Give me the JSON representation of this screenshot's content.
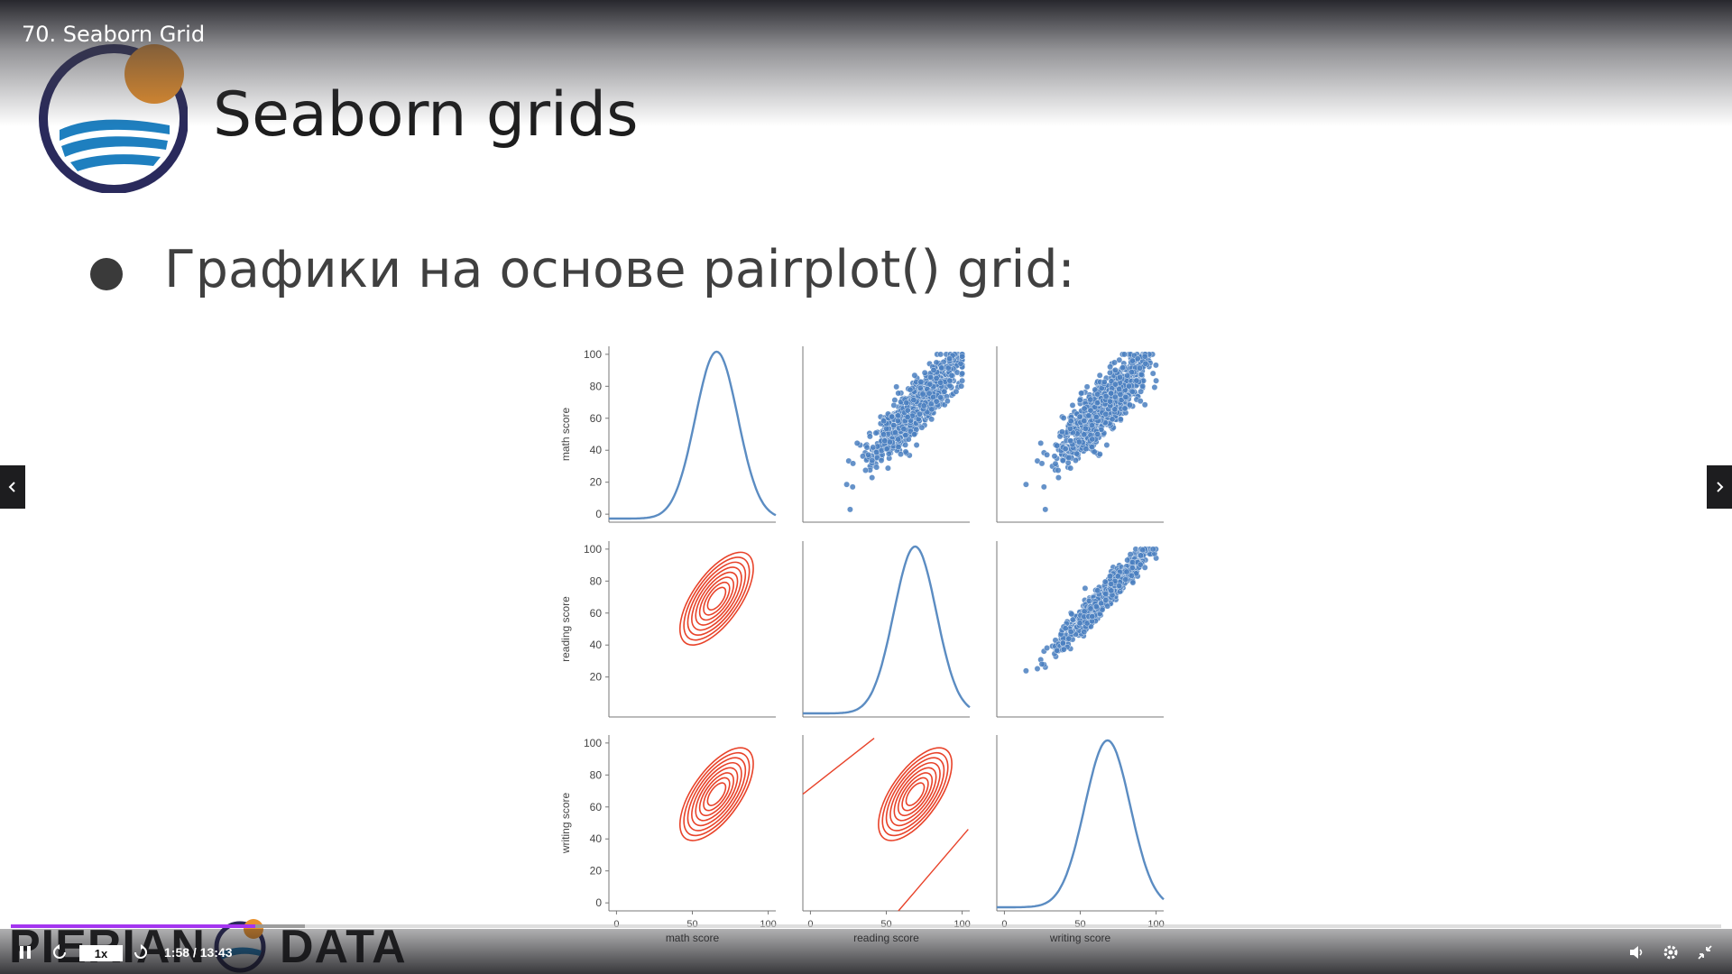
{
  "player": {
    "video_title": "70. Seaborn Grid",
    "speed": "1x",
    "time": "1:58 / 13:43",
    "progress": 0.143,
    "buffered": 0.172,
    "accent": "#a435f0"
  },
  "slide": {
    "heading": "Seaborn grids",
    "bullet": "Графики на основе pairplot() grid:",
    "footer_left": "PIERIAN",
    "footer_right": "DATA"
  },
  "chart_data": {
    "type": "scatter",
    "variables": [
      "math score",
      "reading score",
      "writing score"
    ],
    "yticks": {
      "math score": [
        0,
        20,
        40,
        60,
        80,
        100
      ],
      "reading score": [
        20,
        40,
        60,
        80,
        100
      ],
      "writing score": [
        0,
        20,
        40,
        60,
        80,
        100
      ]
    },
    "xticks": [
      0,
      50,
      100
    ],
    "colors": {
      "diag": "#5b8cc2",
      "upper": "#4a7fc0",
      "lower": "#e8432a"
    },
    "panels": {
      "diagonal": "kde",
      "upper": "scatter",
      "lower": "kde-contour"
    }
  }
}
